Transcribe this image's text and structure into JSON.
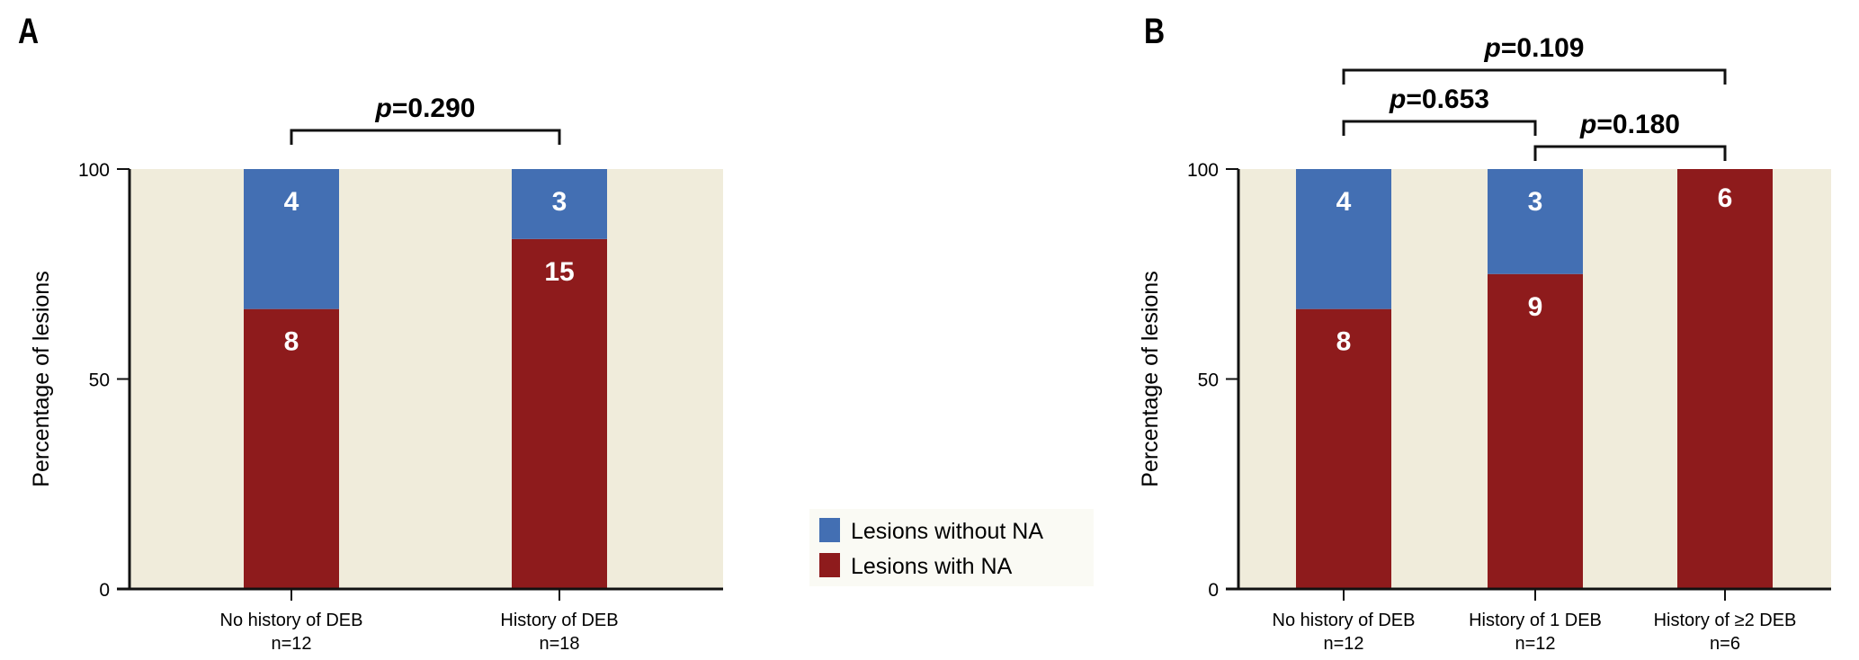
{
  "colors": {
    "without_na": "#436fb3",
    "with_na": "#8e1b1c",
    "plot_bg": "#f0ecdb",
    "legend_bg": "#fafaf4"
  },
  "legend": [
    {
      "label": "Lesions without NA",
      "color_key": "without_na"
    },
    {
      "label": "Lesions with NA",
      "color_key": "with_na"
    }
  ],
  "chart_data": [
    {
      "panel": "A",
      "type": "bar",
      "stacked": true,
      "ylabel": "Percentage of lesions",
      "ylim": [
        0,
        100
      ],
      "yticks": [
        "0",
        "50",
        "100"
      ],
      "categories": [
        {
          "name": "No history of DEB",
          "n": "n=12"
        },
        {
          "name": "History of DEB",
          "n": "n=18"
        }
      ],
      "series": [
        {
          "name": "Lesions with NA",
          "counts": [
            8,
            15
          ]
        },
        {
          "name": "Lesions without NA",
          "counts": [
            4,
            3
          ]
        }
      ],
      "comparisons": [
        {
          "from": 0,
          "to": 1,
          "p_symbol": "p",
          "p_value": "=0.290"
        }
      ]
    },
    {
      "panel": "B",
      "type": "bar",
      "stacked": true,
      "ylabel": "Percentage of lesions",
      "ylim": [
        0,
        100
      ],
      "yticks": [
        "0",
        "50",
        "100"
      ],
      "categories": [
        {
          "name": "No history of DEB",
          "n": "n=12"
        },
        {
          "name": "History of 1 DEB",
          "n": "n=12"
        },
        {
          "name": "History of ≥2 DEB",
          "n": "n=6"
        }
      ],
      "series": [
        {
          "name": "Lesions with NA",
          "counts": [
            8,
            9,
            6
          ]
        },
        {
          "name": "Lesions without NA",
          "counts": [
            4,
            3,
            0
          ]
        }
      ],
      "comparisons": [
        {
          "from": 0,
          "to": 2,
          "p_symbol": "p",
          "p_value": "=0.109"
        },
        {
          "from": 0,
          "to": 1,
          "p_symbol": "p",
          "p_value": "=0.653"
        },
        {
          "from": 1,
          "to": 2,
          "p_symbol": "p",
          "p_value": "=0.180"
        }
      ]
    }
  ]
}
